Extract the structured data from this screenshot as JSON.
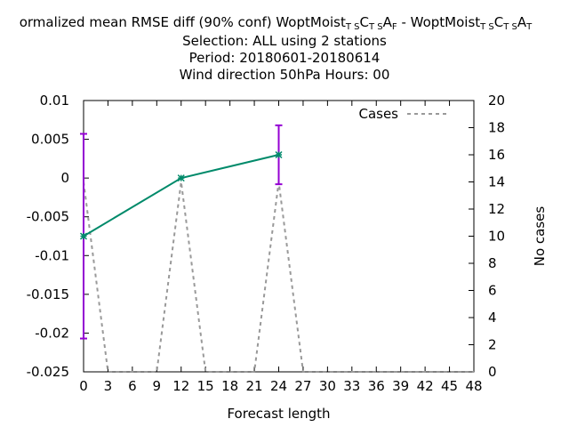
{
  "title": {
    "line1_prefix": "ormalized mean RMSE diff (90% conf) WoptMoist",
    "sub_a": "T S",
    "c1": "C",
    "sub_b": "T S",
    "a1": "A",
    "sub_c": "F",
    "mid": " - WoptMoist",
    "sub_d": "T S",
    "c2": "C",
    "sub_e": "T S",
    "a2": "A",
    "sub_f": "T",
    "line2": "Selection: ALL using     2 stations",
    "line3": "Period: 20180601-20180614",
    "line4": "Wind direction 50hPa   Hours:  00"
  },
  "chart_data": {
    "type": "line",
    "xlabel": "Forecast length",
    "ylabel": "",
    "y2label": "No cases",
    "xlim": [
      0,
      48
    ],
    "ylim": [
      -0.025,
      0.01
    ],
    "y2lim": [
      0,
      20
    ],
    "x_ticks": [
      "0",
      "3",
      "6",
      "9",
      "12",
      "15",
      "18",
      "21",
      "24",
      "27",
      "30",
      "33",
      "36",
      "39",
      "42",
      "45",
      "48"
    ],
    "y_ticks": [
      "0.01",
      "0.005",
      "0",
      "-0.005",
      "-0.01",
      "-0.015",
      "-0.02",
      "-0.025"
    ],
    "y2_ticks": [
      "20",
      "18",
      "16",
      "14",
      "12",
      "10",
      "8",
      "6",
      "4",
      "2",
      "0"
    ],
    "series": [
      {
        "x": [
          0,
          12,
          24
        ],
        "values": [
          -0.0075,
          0.0,
          0.003
        ],
        "err_low": [
          -0.0207,
          0.0,
          -0.0008
        ],
        "err_high": [
          0.0057,
          0.0,
          0.0068
        ],
        "color": "#008a6a",
        "error_color": "#9400d3"
      },
      {
        "name": "Cases",
        "axis": "y2",
        "x": [
          0,
          3,
          6,
          9,
          12,
          15,
          18,
          21,
          24,
          27,
          30,
          33,
          36,
          39,
          42,
          45,
          48
        ],
        "values": [
          14,
          0,
          0,
          0,
          14,
          0,
          0,
          0,
          14,
          0,
          0,
          0,
          0,
          0,
          0,
          0,
          0
        ],
        "color": "#999999",
        "dash": true
      }
    ],
    "legend": {
      "position": "top-right",
      "label": "Cases"
    },
    "grid": false
  }
}
